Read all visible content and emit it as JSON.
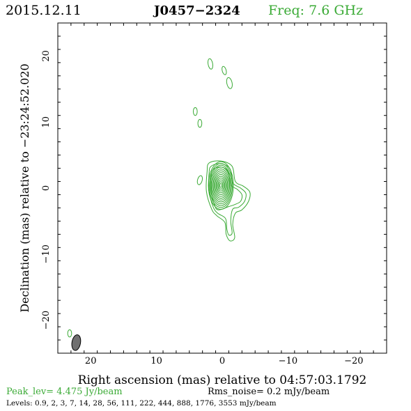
{
  "header": {
    "date": "2015.12.11",
    "source": "J0457−2324",
    "freq": "Freq: 7.6 GHz"
  },
  "colors": {
    "contour": "#3aaa35",
    "frame": "#000000",
    "beam_fill": "#707070",
    "freq_text": "#3aaa35",
    "peak_text": "#3aaa35"
  },
  "footer": {
    "peak": "Peak_lev=  4.475 Jy/beam",
    "rms": "Rms_noise=  0.2 mJy/beam",
    "levels": "Levels: 0.9,   2,   3,   7,  14,  28,  56, 111, 222, 444, 888, 1776, 3553 mJy/beam"
  },
  "chart_data": {
    "type": "contour",
    "xlabel": "Right ascension (mas) relative to 04:57:03.1792",
    "ylabel": "Declination (mas) relative to −23:24:52.020",
    "xlim": [
      25,
      -25
    ],
    "ylim": [
      -25,
      25
    ],
    "xticks": [
      20,
      10,
      0,
      -10,
      -20
    ],
    "xtick_labels": [
      "20",
      "10",
      "0",
      "−10",
      "−20"
    ],
    "yticks": [
      20,
      10,
      0,
      -10,
      -20
    ],
    "ytick_labels": [
      "20",
      "10",
      "0",
      "−10",
      "−20"
    ],
    "grid": false,
    "core_rings": {
      "center": [
        0.2,
        0.4
      ],
      "levels_mJy": [
        0.9,
        2,
        3,
        7,
        14,
        28,
        56,
        111,
        222,
        444,
        888,
        1776,
        3553
      ],
      "outer_half_axes_mas": [
        1.9,
        3.6
      ],
      "inner_half_axes_mas": [
        0.15,
        0.3
      ]
    },
    "extended_contours": [
      [
        [
          2.0,
          3.8
        ],
        [
          0.2,
          4.1
        ],
        [
          -1.5,
          3.3
        ],
        [
          -2.0,
          1.0
        ],
        [
          -3.2,
          0.3
        ],
        [
          -4.2,
          -0.6
        ],
        [
          -4.0,
          -2.0
        ],
        [
          -3.0,
          -3.3
        ],
        [
          -2.0,
          -3.8
        ],
        [
          -1.6,
          -5.5
        ],
        [
          -1.9,
          -7.5
        ],
        [
          -1.2,
          -8.0
        ],
        [
          -0.6,
          -7.0
        ],
        [
          -0.4,
          -5.2
        ],
        [
          0.8,
          -4.2
        ],
        [
          1.6,
          -3.2
        ],
        [
          2.4,
          -0.5
        ],
        [
          2.3,
          2.5
        ]
      ],
      [
        [
          1.7,
          3.3
        ],
        [
          0.2,
          3.7
        ],
        [
          -1.2,
          2.9
        ],
        [
          -1.6,
          0.8
        ],
        [
          -2.8,
          0.0
        ],
        [
          -3.6,
          -0.8
        ],
        [
          -3.4,
          -2.0
        ],
        [
          -2.5,
          -2.9
        ],
        [
          -1.6,
          -3.2
        ],
        [
          -1.3,
          -5.0
        ],
        [
          -1.5,
          -6.8
        ],
        [
          -1.0,
          -7.1
        ],
        [
          -0.7,
          -6.2
        ],
        [
          -0.5,
          -4.6
        ],
        [
          0.7,
          -3.8
        ],
        [
          1.4,
          -2.8
        ],
        [
          2.0,
          -0.4
        ],
        [
          2.0,
          2.2
        ]
      ],
      [
        [
          1.4,
          2.8
        ],
        [
          0.2,
          3.2
        ],
        [
          -0.9,
          2.5
        ],
        [
          -1.3,
          0.5
        ],
        [
          -2.3,
          -0.2
        ],
        [
          -3.0,
          -1.0
        ],
        [
          -2.8,
          -2.0
        ],
        [
          -1.9,
          -2.5
        ],
        [
          -1.0,
          -2.8
        ],
        [
          0.6,
          -3.3
        ],
        [
          1.2,
          -2.5
        ],
        [
          1.7,
          -0.4
        ],
        [
          1.7,
          1.8
        ]
      ]
    ],
    "satellite_components": [
      {
        "x": 1.8,
        "y": 18.8,
        "rx": 0.35,
        "ry": 0.8,
        "rot": -10
      },
      {
        "x": -0.3,
        "y": 17.8,
        "rx": 0.3,
        "ry": 0.65,
        "rot": -15
      },
      {
        "x": -1.1,
        "y": 15.9,
        "rx": 0.4,
        "ry": 0.85,
        "rot": -12
      },
      {
        "x": 4.1,
        "y": 11.6,
        "rx": 0.3,
        "ry": 0.6,
        "rot": 0
      },
      {
        "x": 3.4,
        "y": 9.8,
        "rx": 0.3,
        "ry": 0.6,
        "rot": 0
      },
      {
        "x": 3.4,
        "y": 1.2,
        "rx": 0.35,
        "ry": 0.7,
        "rot": 15
      },
      {
        "x": 23.2,
        "y": -22.0,
        "rx": 0.3,
        "ry": 0.55,
        "rot": 0
      }
    ],
    "beam": {
      "x": 22.2,
      "y": -23.4,
      "rx": 0.65,
      "ry": 1.2,
      "rot": 10
    }
  }
}
